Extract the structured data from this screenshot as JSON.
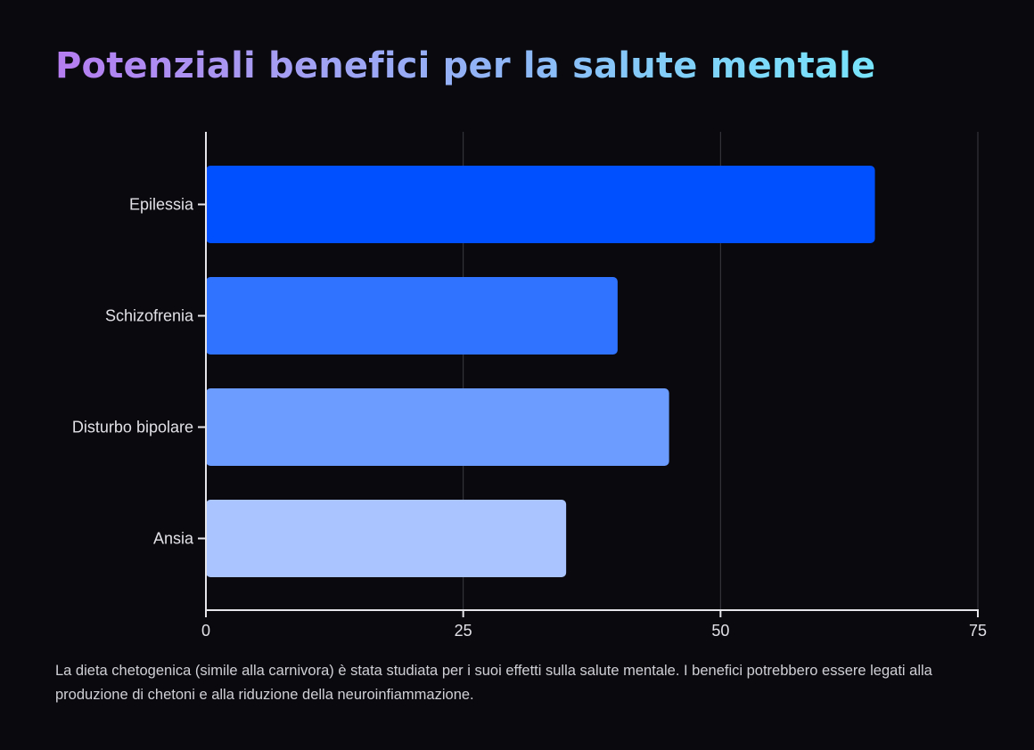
{
  "title": "Potenziali benefici per la salute mentale",
  "caption": "La dieta chetogenica (simile alla carnivora) è stata studiata per i suoi effetti sulla salute mentale. I benefici potrebbero essere legati alla produzione di chetoni e alla riduzione della neuroinfiammazione.",
  "chart_data": {
    "type": "bar",
    "orientation": "horizontal",
    "categories": [
      "Epilessia",
      "Schizofrenia",
      "Disturbo bipolare",
      "Ansia"
    ],
    "values": [
      65,
      40,
      45,
      35
    ],
    "colors": [
      "#0050ff",
      "#2f73ff",
      "#6c9cff",
      "#aac4ff"
    ],
    "xlim": [
      0,
      75
    ],
    "xticks": [
      0,
      25,
      50,
      75
    ],
    "grid": true
  },
  "colors": {
    "background": "#0a0a0e",
    "axis": "#e6e6ea",
    "grid": "#3a3a42",
    "label": "#e0e0e6"
  }
}
